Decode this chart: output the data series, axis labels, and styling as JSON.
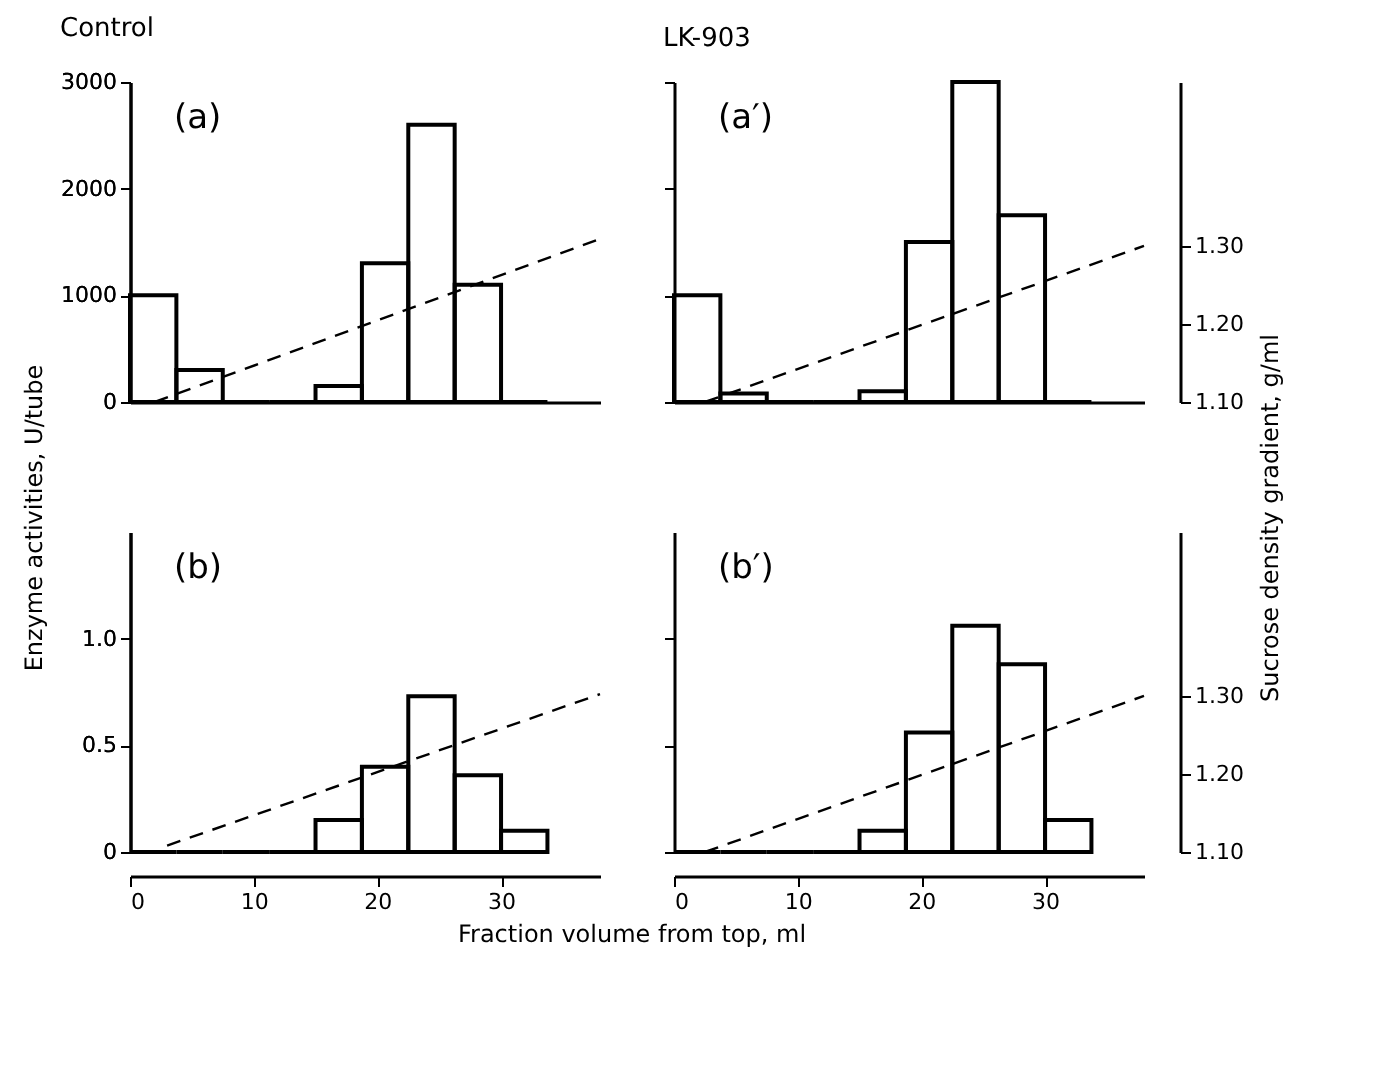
{
  "chart_data": [
    {
      "type": "histogram",
      "title": "Control",
      "ylabel": "Enzyme activities,   U/tube",
      "annotations": [
        "(a)"
      ],
      "xlim": [
        0,
        38
      ],
      "xticks": [
        0,
        10,
        20,
        30
      ],
      "ylim": [
        0,
        3000
      ],
      "yticks": [
        0,
        1000,
        2000,
        3000
      ],
      "tick_labels": "y",
      "series": [
        {
          "type": "histogram",
          "color": "#000000",
          "bins": [
            0,
            3.75,
            7.5,
            11.25,
            15,
            18.75,
            22.5,
            26.25,
            30,
            33.75
          ],
          "values": [
            1000,
            300,
            0,
            0,
            150,
            1300,
            2600,
            1100,
            0
          ]
        },
        {
          "type": "line",
          "color": "#000000",
          "line_style": "dashed",
          "x": [
            2,
            38
          ],
          "values": [
            0,
            1530
          ]
        }
      ]
    },
    {
      "type": "histogram",
      "title": "LK-903",
      "y2label": "Sucrose density gradient,   g/ml",
      "annotations": [
        "(a′)"
      ],
      "xlim": [
        0,
        38
      ],
      "xticks": [
        0,
        10,
        20,
        30
      ],
      "ylim": [
        0,
        3000
      ],
      "yticks": [
        0,
        1000,
        2000,
        3000
      ],
      "y2lim": [
        1.1,
        1.51
      ],
      "y2ticks": [
        {
          "value": 1.1,
          "label": "1.10"
        },
        {
          "value": 1.2,
          "label": "1.20"
        },
        {
          "value": 1.3,
          "label": "1.30"
        }
      ],
      "tick_labels": false,
      "series": [
        {
          "type": "histogram",
          "color": "#000000",
          "bins": [
            0,
            3.75,
            7.5,
            11.25,
            15,
            18.75,
            22.5,
            26.25,
            30,
            33.75
          ],
          "values": [
            1000,
            80,
            0,
            0,
            100,
            1500,
            3000,
            1750,
            0
          ]
        },
        {
          "type": "line",
          "color": "#000000",
          "line_style": "dashed",
          "axis": "y2",
          "x": [
            2.5,
            38
          ],
          "values": [
            1.1,
            1.3
          ]
        }
      ]
    },
    {
      "type": "histogram",
      "xlabel": "Fraction volume from top,   ml",
      "annotations": [
        "(b)"
      ],
      "xlim": [
        0,
        38
      ],
      "xticks": [
        0,
        10,
        20,
        30
      ],
      "ylim": [
        0,
        1.5
      ],
      "yticks": [
        0,
        0.5,
        {
          "value": 1.0,
          "label": "1.0"
        }
      ],
      "series": [
        {
          "type": "histogram",
          "color": "#000000",
          "bins": [
            0,
            3.75,
            7.5,
            11.25,
            15,
            18.75,
            22.5,
            26.25,
            30,
            33.75
          ],
          "values": [
            0,
            0,
            0,
            0,
            0.15,
            0.4,
            0.73,
            0.36,
            0.1
          ]
        },
        {
          "type": "line",
          "color": "#000000",
          "line_style": "dashed",
          "x": [
            3,
            38
          ],
          "values": [
            0.03,
            0.74
          ]
        }
      ]
    },
    {
      "type": "histogram",
      "annotations": [
        "(b′)"
      ],
      "xlim": [
        0,
        38
      ],
      "xticks": [
        0,
        10,
        20,
        30
      ],
      "ylim": [
        0,
        1.5
      ],
      "yticks": [
        0,
        0.5,
        1
      ],
      "y2lim": [
        1.1,
        1.51
      ],
      "y2ticks": [
        {
          "value": 1.1,
          "label": "1.10"
        },
        {
          "value": 1.2,
          "label": "1.20"
        },
        {
          "value": 1.3,
          "label": "1.30"
        }
      ],
      "tick_labels": "x",
      "series": [
        {
          "type": "histogram",
          "color": "#000000",
          "bins": [
            0,
            3.75,
            7.5,
            11.25,
            15,
            18.75,
            22.5,
            26.25,
            30,
            33.75
          ],
          "values": [
            0,
            0,
            0,
            0,
            0.1,
            0.56,
            1.06,
            0.88,
            0.15
          ]
        },
        {
          "type": "line",
          "color": "#000000",
          "line_style": "dashed",
          "axis": "y2",
          "x": [
            2.5,
            38
          ],
          "values": [
            1.1,
            1.3
          ]
        }
      ]
    }
  ]
}
